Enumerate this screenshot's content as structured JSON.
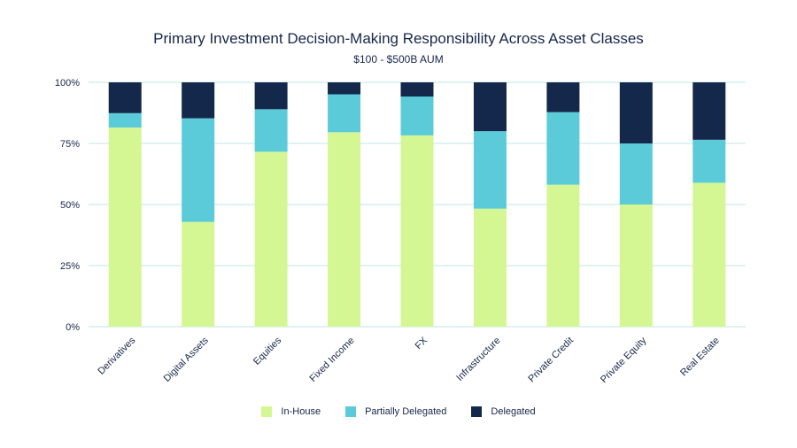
{
  "chart_data": {
    "type": "bar",
    "stacked": true,
    "title": "Primary Investment Decision-Making Responsibility Across Asset Classes",
    "subtitle": "$100 - $500B AUM",
    "categories": [
      "Derivatives",
      "Digital Assets",
      "Equities",
      "Fixed Income",
      "FX",
      "Infrastructure",
      "Private Credit",
      "Private Equity",
      "Real Estate"
    ],
    "series": [
      {
        "name": "In-House",
        "color": "#d4f794",
        "values": [
          81.5,
          42.9,
          71.6,
          79.6,
          78.3,
          48.3,
          58.1,
          50.0,
          58.9
        ]
      },
      {
        "name": "Partially Delegated",
        "color": "#5bcbd9",
        "values": [
          5.9,
          42.4,
          17.4,
          15.5,
          15.9,
          31.7,
          29.7,
          25.0,
          17.6
        ]
      },
      {
        "name": "Delegated",
        "color": "#14284b",
        "values": [
          12.6,
          14.7,
          11.0,
          4.9,
          5.8,
          20.0,
          12.2,
          25.0,
          23.5
        ]
      }
    ],
    "ylim": [
      0,
      100
    ],
    "yticks": [
      "0%",
      "25%",
      "50%",
      "75%",
      "100%"
    ],
    "grid": true,
    "legend_position": "bottom"
  }
}
